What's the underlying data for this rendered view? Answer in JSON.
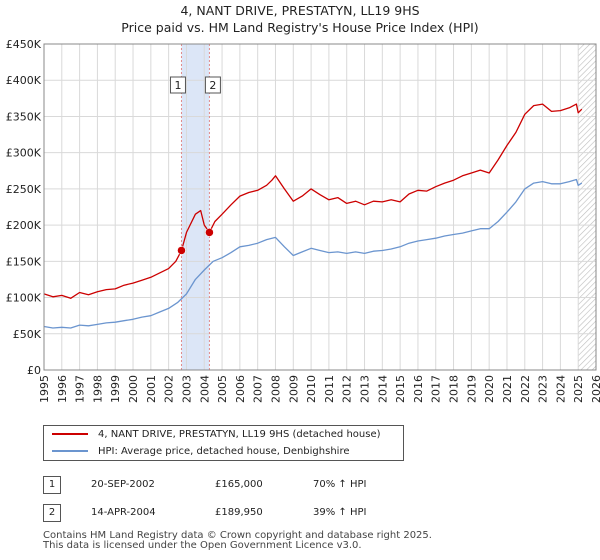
{
  "header": {
    "title_line1": "4, NANT DRIVE, PRESTATYN, LL19 9HS",
    "title_line2": "Price paid vs. HM Land Registry's House Price Index (HPI)"
  },
  "colors": {
    "red": "#cc0000",
    "blue": "#6b95cf",
    "band": "#dce6f7",
    "grid": "#d9d9d9",
    "marker_line": "#e08a8a"
  },
  "chart_data": {
    "type": "line",
    "title": "Price paid vs. HM Land Registry's House Price Index (HPI)",
    "xlim": [
      1995,
      2026
    ],
    "ylim": [
      0,
      450000
    ],
    "x_ticks": [
      1995,
      1996,
      1997,
      1998,
      1999,
      2000,
      2001,
      2002,
      2003,
      2004,
      2005,
      2006,
      2007,
      2008,
      2009,
      2010,
      2011,
      2012,
      2013,
      2014,
      2015,
      2016,
      2017,
      2018,
      2019,
      2020,
      2021,
      2022,
      2023,
      2024,
      2025,
      2026
    ],
    "y_ticks": [
      {
        "value": 0,
        "label": "£0"
      },
      {
        "value": 50000,
        "label": "£50K"
      },
      {
        "value": 100000,
        "label": "£100K"
      },
      {
        "value": 150000,
        "label": "£150K"
      },
      {
        "value": 200000,
        "label": "£200K"
      },
      {
        "value": 250000,
        "label": "£250K"
      },
      {
        "value": 300000,
        "label": "£300K"
      },
      {
        "value": 350000,
        "label": "£350K"
      },
      {
        "value": 400000,
        "label": "£400K"
      },
      {
        "value": 450000,
        "label": "£450K"
      }
    ],
    "series": [
      {
        "name": "4, NANT DRIVE, PRESTATYN, LL19 9HS (detached house)",
        "color": "#cc0000",
        "x": [
          1995.0,
          1995.5,
          1996.0,
          1996.5,
          1997.0,
          1997.5,
          1998.0,
          1998.5,
          1999.0,
          1999.5,
          2000.0,
          2000.5,
          2001.0,
          2001.5,
          2002.0,
          2002.4,
          2002.72,
          2003.0,
          2003.5,
          2003.8,
          2004.0,
          2004.29,
          2004.6,
          2005.0,
          2005.5,
          2006.0,
          2006.5,
          2007.0,
          2007.5,
          2007.8,
          2008.0,
          2008.5,
          2009.0,
          2009.5,
          2010.0,
          2010.5,
          2011.0,
          2011.5,
          2012.0,
          2012.5,
          2013.0,
          2013.5,
          2014.0,
          2014.5,
          2015.0,
          2015.5,
          2016.0,
          2016.5,
          2017.0,
          2017.5,
          2018.0,
          2018.5,
          2019.0,
          2019.5,
          2020.0,
          2020.5,
          2021.0,
          2021.5,
          2022.0,
          2022.5,
          2023.0,
          2023.5,
          2024.0,
          2024.5,
          2024.9,
          2025.0,
          2025.2
        ],
        "values": [
          105000,
          101000,
          103000,
          99000,
          107000,
          104000,
          108000,
          111000,
          112000,
          117000,
          120000,
          124000,
          128000,
          134000,
          140000,
          150000,
          165000,
          190000,
          215000,
          220000,
          200000,
          189950,
          205000,
          215000,
          228000,
          240000,
          245000,
          248000,
          255000,
          262000,
          268000,
          250000,
          233000,
          240000,
          250000,
          242000,
          235000,
          238000,
          230000,
          233000,
          228000,
          233000,
          232000,
          235000,
          232000,
          243000,
          248000,
          247000,
          253000,
          258000,
          262000,
          268000,
          272000,
          276000,
          272000,
          290000,
          310000,
          328000,
          353000,
          365000,
          367000,
          357000,
          358000,
          362000,
          367000,
          355000,
          360000
        ]
      },
      {
        "name": "HPI: Average price, detached house, Denbighshire",
        "color": "#6b95cf",
        "x": [
          1995.0,
          1995.5,
          1996.0,
          1996.5,
          1997.0,
          1997.5,
          1998.0,
          1998.5,
          1999.0,
          1999.5,
          2000.0,
          2000.5,
          2001.0,
          2001.5,
          2002.0,
          2002.5,
          2003.0,
          2003.5,
          2004.0,
          2004.5,
          2005.0,
          2005.5,
          2006.0,
          2006.5,
          2007.0,
          2007.5,
          2008.0,
          2008.5,
          2009.0,
          2009.5,
          2010.0,
          2010.5,
          2011.0,
          2011.5,
          2012.0,
          2012.5,
          2013.0,
          2013.5,
          2014.0,
          2014.5,
          2015.0,
          2015.5,
          2016.0,
          2016.5,
          2017.0,
          2017.5,
          2018.0,
          2018.5,
          2019.0,
          2019.5,
          2020.0,
          2020.5,
          2021.0,
          2021.5,
          2022.0,
          2022.5,
          2023.0,
          2023.5,
          2024.0,
          2024.5,
          2024.9,
          2025.0,
          2025.2
        ],
        "values": [
          60000,
          58000,
          59000,
          58000,
          62000,
          61000,
          63000,
          65000,
          66000,
          68000,
          70000,
          73000,
          75000,
          80000,
          85000,
          93000,
          105000,
          125000,
          138000,
          150000,
          155000,
          162000,
          170000,
          172000,
          175000,
          180000,
          183000,
          170000,
          158000,
          163000,
          168000,
          165000,
          162000,
          163000,
          161000,
          163000,
          161000,
          164000,
          165000,
          167000,
          170000,
          175000,
          178000,
          180000,
          182000,
          185000,
          187000,
          189000,
          192000,
          195000,
          195000,
          205000,
          218000,
          232000,
          250000,
          258000,
          260000,
          257000,
          257000,
          260000,
          263000,
          255000,
          258000
        ]
      }
    ],
    "sales": [
      {
        "id": "1",
        "x": 2002.72,
        "value": 165000
      },
      {
        "id": "2",
        "x": 2004.29,
        "value": 189950
      }
    ],
    "shaded_band": [
      2002.72,
      2004.29
    ],
    "future_from": 2025.0
  },
  "legend": {
    "red_label": "4, NANT DRIVE, PRESTATYN, LL19 9HS (detached house)",
    "blue_label": "HPI: Average price, detached house, Denbighshire"
  },
  "sales_table": [
    {
      "id": "1",
      "date": "20-SEP-2002",
      "price": "£165,000",
      "hpi": "70% ↑ HPI"
    },
    {
      "id": "2",
      "date": "14-APR-2004",
      "price": "£189,950",
      "hpi": "39% ↑ HPI"
    }
  ],
  "footer": {
    "line1": "Contains HM Land Registry data © Crown copyright and database right 2025.",
    "line2": "This data is licensed under the Open Government Licence v3.0."
  }
}
